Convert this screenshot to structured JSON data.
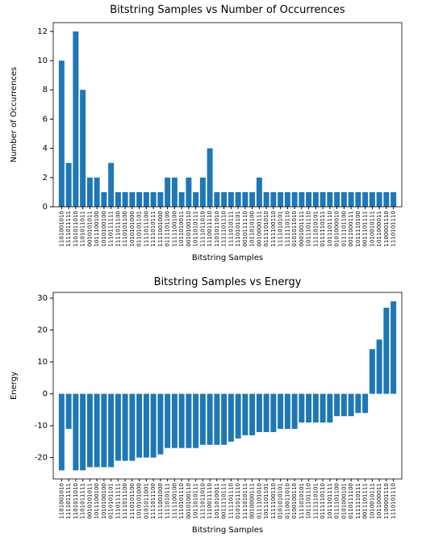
{
  "chart_data": [
    {
      "type": "bar",
      "title": "Bitstring Samples vs Number of Occurrences",
      "xlabel": "Bitstring Samples",
      "ylabel": "Number of Occurrences",
      "color": "#1f77b4",
      "categories": [
        "1101001010",
        "1111011111",
        "1101011010",
        "1101011011",
        "0010101011",
        "1011100100",
        "1010100100",
        "1110111111",
        "1111011100",
        "1110101100",
        "1010101000",
        "0110101101",
        "1111011100",
        "1111010111",
        "1111001000",
        "0111101100",
        "1111100100",
        "1011010011",
        "0010100110",
        "1011010111",
        "1111011010",
        "1110011110",
        "1101011010",
        "1111101110",
        "1111010111",
        "1110101101",
        "0010111110",
        "1011010100",
        "0010000111",
        "0111101010",
        "1111100110",
        "1111010101",
        "1111110110",
        "0101011010",
        "0001001111",
        "1011101110",
        "1111010101",
        "0111110111",
        "1011101110",
        "0101000010",
        "0111101100",
        "0011000111",
        "1011110100",
        "0011101111",
        "1010010111",
        "1011000011",
        "1100001110",
        "1110101110"
      ],
      "values": [
        10,
        3,
        12,
        8,
        2,
        2,
        1,
        3,
        1,
        1,
        1,
        1,
        1,
        1,
        1,
        2,
        2,
        1,
        2,
        1,
        2,
        4,
        1,
        1,
        1,
        1,
        1,
        1,
        2,
        1,
        1,
        1,
        1,
        1,
        1,
        1,
        1,
        1,
        1,
        1,
        1,
        1,
        1,
        1,
        1,
        1,
        1,
        1
      ],
      "ylim": [
        0,
        12.6
      ],
      "yticks": [
        0,
        2,
        4,
        6,
        8,
        10,
        12
      ]
    },
    {
      "type": "bar",
      "title": "Bitstring Samples vs Energy",
      "xlabel": "Bitstring Samples",
      "ylabel": "Energy",
      "color": "#1f77b4",
      "categories": [
        "1101001010",
        "1111011111",
        "1101011010",
        "1101011111",
        "0010101011",
        "1011100100",
        "1010100100",
        "0110101101",
        "1110111111",
        "1111011100",
        "1110101100",
        "1010101000",
        "0101011001",
        "1111011100",
        "1111001000",
        "1111010111",
        "1111100100",
        "1110101110",
        "0010100110",
        "1011010111",
        "1111011010",
        "1110011110",
        "1011010011",
        "0011110111",
        "1111101110",
        "0101011110",
        "1111010111",
        "0010000111",
        "0111101010",
        "1011101101",
        "1111100110",
        "0101010101",
        "0110011010",
        "0100100110",
        "1111010101",
        "1011101110",
        "1111110101",
        "0111110110",
        "1011101111",
        "0111101100",
        "0101000101",
        "0110111100",
        "1111110111",
        "0011101111",
        "1010010111",
        "1011000011",
        "1100001110",
        "1110101110"
      ],
      "values": [
        -24,
        -11,
        -24,
        -24,
        -23,
        -23,
        -23,
        -23,
        -21,
        -21,
        -21,
        -20,
        -20,
        -20,
        -19,
        -17,
        -17,
        -17,
        -17,
        -17,
        -16,
        -16,
        -16,
        -16,
        -15,
        -14,
        -13,
        -13,
        -12,
        -12,
        -12,
        -11,
        -11,
        -11,
        -9,
        -9,
        -9,
        -9,
        -9,
        -7,
        -7,
        -7,
        -6,
        -6,
        14,
        17,
        27,
        29
      ],
      "ylim": [
        -26.7,
        31.8
      ],
      "yticks": [
        -20,
        -10,
        0,
        10,
        20,
        30
      ]
    }
  ]
}
